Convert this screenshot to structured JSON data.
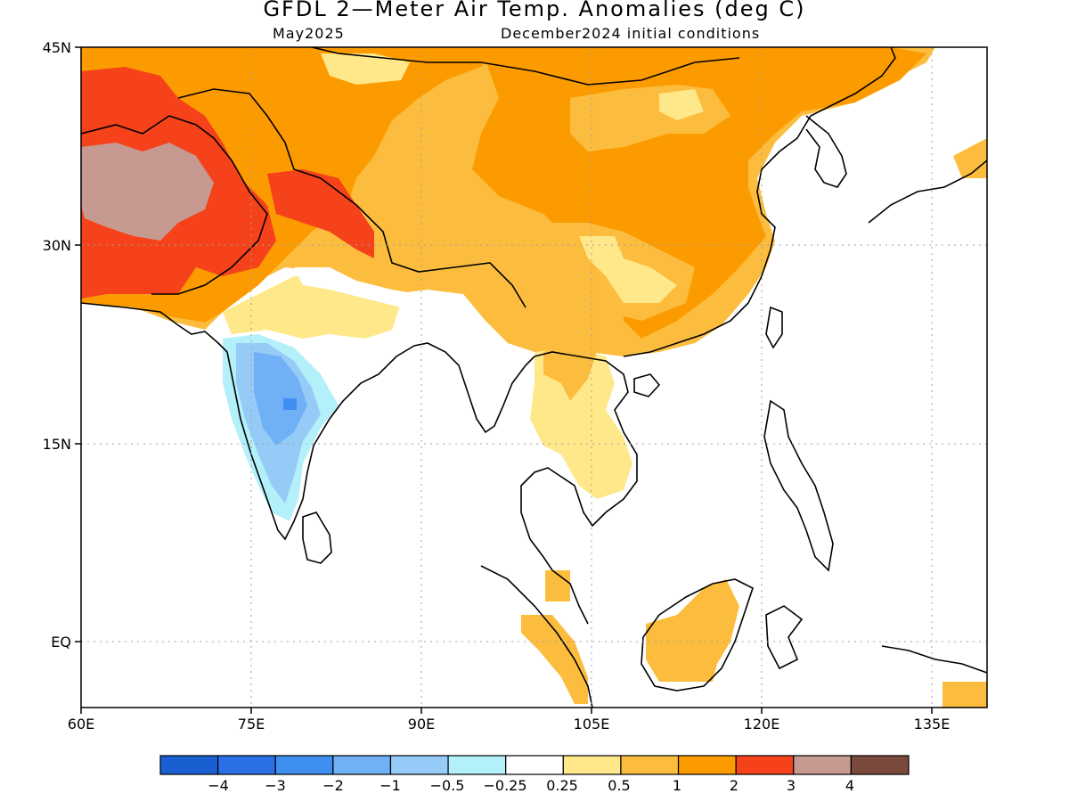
{
  "title": "GFDL 2—Meter Air Temp. Anomalies (deg C)",
  "valid_month": "May2025",
  "init_conditions": "December2024 initial conditions",
  "map": {
    "projection": "equirectangular",
    "lon_range": [
      60,
      140
    ],
    "lat_range": [
      -5,
      45
    ],
    "lat_labels": [
      "45N",
      "30N",
      "15N",
      "EQ"
    ],
    "lon_labels": [
      "60E",
      "75E",
      "90E",
      "105E",
      "120E",
      "135E"
    ],
    "gridlines": "dotted",
    "grid_color": "#a0a0a0",
    "coastline_color": "#000000"
  },
  "colorbar": {
    "colors": [
      "#1a5fd1",
      "#2b6fe6",
      "#3f8ff0",
      "#70b0f5",
      "#96cbf7",
      "#b4f0fa",
      "#ffffff",
      "#ffe88a",
      "#fcbd3e",
      "#fc9b00",
      "#f5421b",
      "#c69a90",
      "#7a4b3c"
    ],
    "labels": [
      "−4",
      "−3",
      "−2",
      "−1",
      "−0.5",
      "−0.25",
      "0.25",
      "0.5",
      "1",
      "2",
      "3",
      "4"
    ]
  }
}
